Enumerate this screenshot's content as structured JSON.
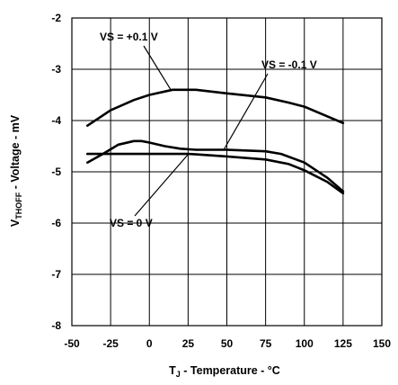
{
  "chart_data": {
    "type": "line",
    "x_axis": {
      "label_main": "T",
      "label_sub": "J",
      "label_rest": " - Temperature - °C",
      "range": [
        -50,
        150
      ],
      "ticks": [
        -50,
        -25,
        0,
        25,
        50,
        75,
        100,
        125,
        150
      ]
    },
    "y_axis": {
      "label_main": "V",
      "label_sub": "THOFF",
      "label_rest": " - Voltage - mV",
      "range": [
        -8,
        -2
      ],
      "ticks": [
        -2,
        -3,
        -4,
        -5,
        -6,
        -7,
        -8
      ]
    },
    "grid": true,
    "series": [
      {
        "name": "VS = +0.1 V",
        "x": [
          -40,
          -25,
          -10,
          0,
          15,
          30,
          50,
          75,
          90,
          100,
          125
        ],
        "y": [
          -4.1,
          -3.8,
          -3.6,
          -3.5,
          -3.4,
          -3.4,
          -3.47,
          -3.55,
          -3.65,
          -3.73,
          -4.05
        ]
      },
      {
        "name": "VS = -0.1 V",
        "x": [
          -40,
          -30,
          -20,
          -10,
          -5,
          0,
          10,
          20,
          30,
          50,
          75,
          85,
          100,
          115,
          125
        ],
        "y": [
          -4.82,
          -4.65,
          -4.47,
          -4.4,
          -4.4,
          -4.43,
          -4.5,
          -4.55,
          -4.57,
          -4.57,
          -4.6,
          -4.65,
          -4.82,
          -5.12,
          -5.38
        ]
      },
      {
        "name": "VS = 0 V",
        "x": [
          -40,
          -25,
          0,
          25,
          30,
          50,
          75,
          90,
          100,
          115,
          125
        ],
        "y": [
          -4.65,
          -4.65,
          -4.65,
          -4.65,
          -4.66,
          -4.7,
          -4.76,
          -4.85,
          -4.97,
          -5.2,
          -5.42
        ]
      }
    ],
    "annotations": [
      {
        "text": "VS = +0.1 V",
        "pointer": {
          "x": 14,
          "y": -3.41
        }
      },
      {
        "text": "VS = -0.1 V",
        "pointer": {
          "x": 48,
          "y": -4.57
        }
      },
      {
        "text": "VS = 0 V",
        "pointer": {
          "x": 25,
          "y": -4.66
        }
      }
    ]
  }
}
